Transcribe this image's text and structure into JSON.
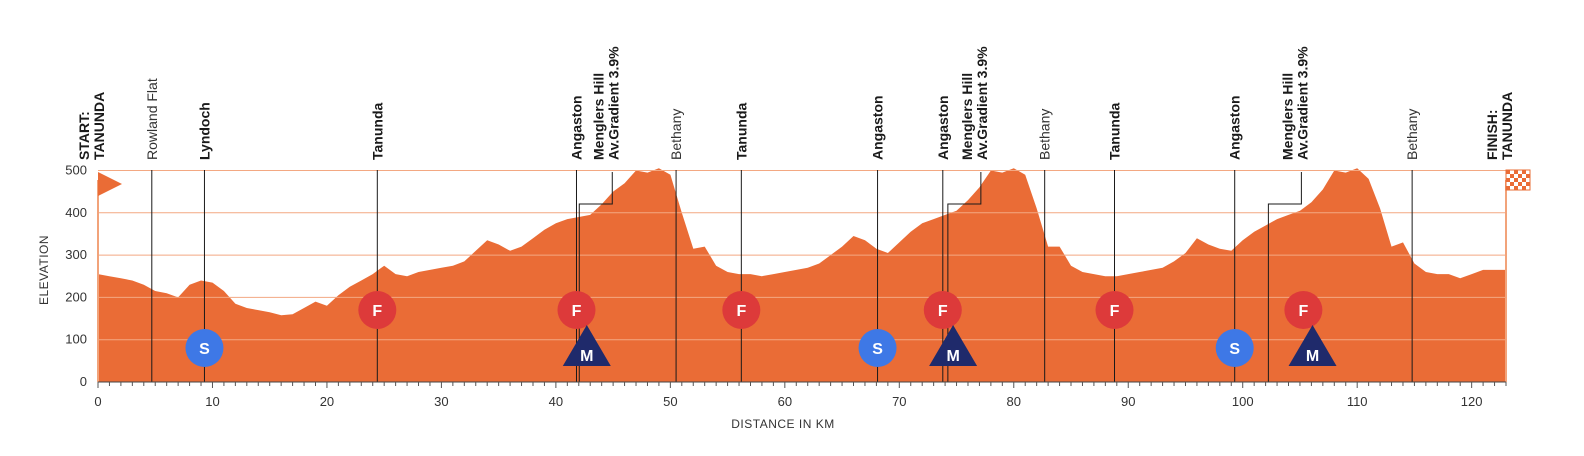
{
  "chart_data": {
    "type": "area",
    "xlabel": "DISTANCE IN KM",
    "ylabel": "ELEVATION",
    "xlim": [
      0,
      123
    ],
    "ylim": [
      0,
      520
    ],
    "x_ticks": [
      0,
      10,
      20,
      30,
      40,
      50,
      60,
      70,
      80,
      90,
      100,
      110,
      120
    ],
    "y_ticks": [
      0,
      100,
      200,
      300,
      400,
      500
    ],
    "grid": true,
    "colors": {
      "fill": "#ea6c36",
      "gridline": "#f3a882",
      "sprint": "#3e78e6",
      "feed": "#dd3a3a",
      "mountain": "#1f2a6b",
      "text": "#1a1a1a"
    },
    "profile": {
      "x": [
        0,
        1,
        2,
        3,
        4,
        5,
        6,
        7,
        8,
        9,
        10,
        11,
        12,
        13,
        14,
        15,
        16,
        17,
        18,
        19,
        20,
        21,
        22,
        23,
        24,
        25,
        26,
        27,
        28,
        29,
        30,
        31,
        32,
        33,
        34,
        35,
        36,
        37,
        38,
        39,
        40,
        41,
        42,
        43,
        44,
        45,
        46,
        47,
        48,
        49,
        50,
        51,
        52,
        53,
        54,
        55,
        56,
        57,
        58,
        59,
        60,
        61,
        62,
        63,
        64,
        65,
        66,
        67,
        68,
        69,
        70,
        71,
        72,
        73,
        74,
        75,
        76,
        77,
        78,
        79,
        80,
        81,
        82,
        83,
        84,
        85,
        86,
        87,
        88,
        89,
        90,
        91,
        92,
        93,
        94,
        95,
        96,
        97,
        98,
        99,
        100,
        101,
        102,
        103,
        104,
        105,
        106,
        107,
        108,
        109,
        110,
        111,
        112,
        113,
        114,
        115,
        116,
        117,
        118,
        119,
        120,
        121,
        122,
        123
      ],
      "elevation": [
        255,
        250,
        245,
        240,
        230,
        215,
        210,
        200,
        230,
        240,
        235,
        215,
        185,
        175,
        170,
        165,
        158,
        160,
        175,
        190,
        180,
        205,
        225,
        240,
        255,
        275,
        255,
        250,
        260,
        265,
        270,
        275,
        285,
        310,
        335,
        325,
        310,
        320,
        340,
        360,
        375,
        385,
        390,
        395,
        420,
        450,
        470,
        500,
        495,
        505,
        490,
        400,
        315,
        320,
        275,
        260,
        255,
        255,
        250,
        255,
        260,
        265,
        270,
        280,
        300,
        320,
        345,
        335,
        315,
        305,
        330,
        355,
        375,
        385,
        395,
        405,
        430,
        460,
        500,
        495,
        505,
        490,
        410,
        320,
        320,
        275,
        260,
        255,
        250,
        250,
        255,
        260,
        265,
        270,
        285,
        305,
        340,
        325,
        315,
        310,
        335,
        355,
        370,
        385,
        395,
        405,
        425,
        455,
        500,
        495,
        505,
        480,
        410,
        320,
        330,
        280,
        260,
        255,
        255,
        245,
        255,
        265,
        265,
        265
      ]
    },
    "places": [
      {
        "km": 0,
        "line1": "START:",
        "line2": "TANUNDA",
        "bold": true,
        "endpoint": true
      },
      {
        "km": 4.7,
        "line1": "Rowland Flat",
        "line2": "",
        "bold": false
      },
      {
        "km": 9.3,
        "line1": "Lyndoch",
        "line2": "",
        "bold": true
      },
      {
        "km": 24.4,
        "line1": "Tanunda",
        "line2": "",
        "bold": true
      },
      {
        "km": 41.8,
        "line1": "Angaston",
        "line2": "",
        "bold": true
      },
      {
        "km": 45.1,
        "line1": "Menglers Hill",
        "line2": "Av.Gradient 3.9%",
        "bold": true,
        "climb": true
      },
      {
        "km": 50.5,
        "line1": "Bethany",
        "line2": "",
        "bold": false
      },
      {
        "km": 56.2,
        "line1": "Tanunda",
        "line2": "",
        "bold": true
      },
      {
        "km": 68.1,
        "line1": "Angaston",
        "line2": "",
        "bold": true
      },
      {
        "km": 73.8,
        "line1": "Angaston",
        "line2": "",
        "bold": true
      },
      {
        "km": 77.3,
        "line1": "Menglers Hill",
        "line2": "Av.Gradient 3.9%",
        "bold": true,
        "climb": true
      },
      {
        "km": 82.7,
        "line1": "Bethany",
        "line2": "",
        "bold": false
      },
      {
        "km": 88.8,
        "line1": "Tanunda",
        "line2": "",
        "bold": true
      },
      {
        "km": 99.3,
        "line1": "Angaston",
        "line2": "",
        "bold": true
      },
      {
        "km": 105.3,
        "line1": "Menglers Hill",
        "line2": "Av.Gradient 3.9%",
        "bold": true,
        "climb": true
      },
      {
        "km": 114.8,
        "line1": "Bethany",
        "line2": "",
        "bold": false
      },
      {
        "km": 123,
        "line1": "FINISH:",
        "line2": "TANUNDA",
        "bold": true,
        "endpoint": true
      }
    ],
    "markers": [
      {
        "type": "sprint",
        "label": "S",
        "km": 9.3
      },
      {
        "type": "feed",
        "label": "F",
        "km": 24.4
      },
      {
        "type": "feed",
        "label": "F",
        "km": 41.8
      },
      {
        "type": "mountain",
        "label": "M",
        "km": 42.7
      },
      {
        "type": "feed",
        "label": "F",
        "km": 56.2
      },
      {
        "type": "sprint",
        "label": "S",
        "km": 68.1
      },
      {
        "type": "feed",
        "label": "F",
        "km": 73.8
      },
      {
        "type": "mountain",
        "label": "M",
        "km": 74.7
      },
      {
        "type": "feed",
        "label": "F",
        "km": 88.8
      },
      {
        "type": "sprint",
        "label": "S",
        "km": 99.3
      },
      {
        "type": "feed",
        "label": "F",
        "km": 105.3
      },
      {
        "type": "mountain",
        "label": "M",
        "km": 106.1
      }
    ]
  }
}
